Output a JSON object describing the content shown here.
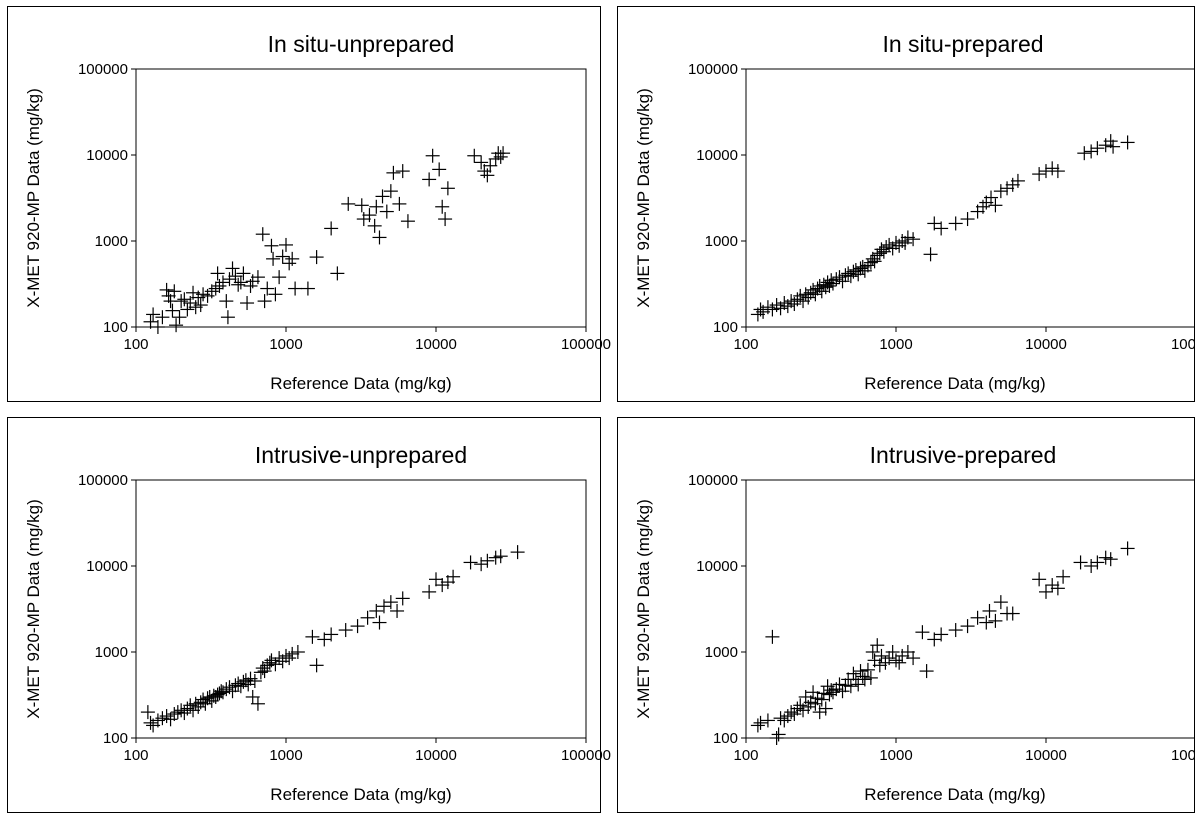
{
  "chart_data": [
    {
      "type": "scatter",
      "title": "In situ-unprepared",
      "xlabel": "Reference Data (mg/kg)",
      "ylabel": "X-MET 920-MP Data (mg/kg)",
      "xscale": "log",
      "yscale": "log",
      "xlim": [
        100,
        100000
      ],
      "ylim": [
        100,
        100000
      ],
      "xticks": [
        "100",
        "1000",
        "10000",
        "100000"
      ],
      "yticks": [
        "100",
        "1000",
        "10000",
        "100000"
      ],
      "grid": false,
      "points": [
        [
          125,
          115
        ],
        [
          130,
          140
        ],
        [
          140,
          100
        ],
        [
          150,
          130
        ],
        [
          160,
          270
        ],
        [
          165,
          230
        ],
        [
          170,
          200
        ],
        [
          175,
          155
        ],
        [
          180,
          260
        ],
        [
          185,
          105
        ],
        [
          195,
          130
        ],
        [
          200,
          200
        ],
        [
          210,
          210
        ],
        [
          220,
          160
        ],
        [
          230,
          190
        ],
        [
          240,
          250
        ],
        [
          250,
          170
        ],
        [
          260,
          220
        ],
        [
          270,
          180
        ],
        [
          280,
          240
        ],
        [
          300,
          230
        ],
        [
          320,
          260
        ],
        [
          340,
          280
        ],
        [
          350,
          420
        ],
        [
          360,
          300
        ],
        [
          380,
          330
        ],
        [
          400,
          200
        ],
        [
          410,
          130
        ],
        [
          420,
          360
        ],
        [
          440,
          480
        ],
        [
          460,
          390
        ],
        [
          480,
          310
        ],
        [
          500,
          330
        ],
        [
          520,
          420
        ],
        [
          550,
          190
        ],
        [
          580,
          300
        ],
        [
          600,
          340
        ],
        [
          650,
          380
        ],
        [
          700,
          1200
        ],
        [
          720,
          200
        ],
        [
          750,
          280
        ],
        [
          800,
          880
        ],
        [
          820,
          620
        ],
        [
          850,
          240
        ],
        [
          900,
          380
        ],
        [
          950,
          660
        ],
        [
          1000,
          900
        ],
        [
          1050,
          550
        ],
        [
          1100,
          620
        ],
        [
          1150,
          280
        ],
        [
          1400,
          280
        ],
        [
          1600,
          650
        ],
        [
          2000,
          1400
        ],
        [
          2200,
          420
        ],
        [
          2600,
          2700
        ],
        [
          3200,
          2600
        ],
        [
          3300,
          1800
        ],
        [
          3600,
          2000
        ],
        [
          3900,
          1500
        ],
        [
          4000,
          2500
        ],
        [
          4200,
          1100
        ],
        [
          4400,
          3300
        ],
        [
          4700,
          2200
        ],
        [
          5000,
          3800
        ],
        [
          5200,
          6200
        ],
        [
          5700,
          2700
        ],
        [
          6000,
          6500
        ],
        [
          6500,
          1700
        ],
        [
          9000,
          5200
        ],
        [
          9500,
          9800
        ],
        [
          10500,
          6800
        ],
        [
          11000,
          2500
        ],
        [
          11500,
          1800
        ],
        [
          12000,
          4100
        ],
        [
          18000,
          9800
        ],
        [
          20000,
          8200
        ],
        [
          21000,
          6500
        ],
        [
          22000,
          5800
        ],
        [
          23000,
          7500
        ],
        [
          25000,
          9000
        ],
        [
          26000,
          10500
        ],
        [
          27000,
          9500
        ],
        [
          28000,
          10500
        ]
      ]
    },
    {
      "type": "scatter",
      "title": "In situ-prepared",
      "xlabel": "Reference Data (mg/kg)",
      "ylabel": "X-MET 920-MP Data (mg/kg)",
      "xscale": "log",
      "yscale": "log",
      "xlim": [
        100,
        100000
      ],
      "ylim": [
        100,
        100000
      ],
      "xticks": [
        "100",
        "1000",
        "10000",
        "100000"
      ],
      "yticks": [
        "100",
        "1000",
        "10000",
        "100000"
      ],
      "grid": false,
      "points": [
        [
          120,
          140
        ],
        [
          125,
          160
        ],
        [
          130,
          150
        ],
        [
          140,
          170
        ],
        [
          150,
          160
        ],
        [
          160,
          180
        ],
        [
          170,
          165
        ],
        [
          180,
          190
        ],
        [
          190,
          175
        ],
        [
          200,
          200
        ],
        [
          210,
          185
        ],
        [
          220,
          210
        ],
        [
          230,
          230
        ],
        [
          240,
          200
        ],
        [
          250,
          240
        ],
        [
          260,
          220
        ],
        [
          270,
          250
        ],
        [
          280,
          270
        ],
        [
          290,
          240
        ],
        [
          300,
          280
        ],
        [
          310,
          300
        ],
        [
          320,
          260
        ],
        [
          330,
          310
        ],
        [
          340,
          290
        ],
        [
          350,
          330
        ],
        [
          360,
          300
        ],
        [
          370,
          350
        ],
        [
          380,
          320
        ],
        [
          400,
          360
        ],
        [
          420,
          380
        ],
        [
          440,
          340
        ],
        [
          460,
          400
        ],
        [
          480,
          420
        ],
        [
          500,
          390
        ],
        [
          520,
          440
        ],
        [
          540,
          460
        ],
        [
          560,
          410
        ],
        [
          580,
          480
        ],
        [
          600,
          500
        ],
        [
          620,
          450
        ],
        [
          650,
          520
        ],
        [
          680,
          560
        ],
        [
          700,
          620
        ],
        [
          720,
          580
        ],
        [
          750,
          680
        ],
        [
          780,
          720
        ],
        [
          800,
          800
        ],
        [
          830,
          750
        ],
        [
          860,
          850
        ],
        [
          900,
          900
        ],
        [
          950,
          820
        ],
        [
          1000,
          950
        ],
        [
          1050,
          880
        ],
        [
          1100,
          1000
        ],
        [
          1150,
          950
        ],
        [
          1200,
          1100
        ],
        [
          1300,
          1050
        ],
        [
          1700,
          700
        ],
        [
          1800,
          1600
        ],
        [
          2000,
          1400
        ],
        [
          2500,
          1600
        ],
        [
          3000,
          1800
        ],
        [
          3500,
          2200
        ],
        [
          3800,
          2500
        ],
        [
          4000,
          2800
        ],
        [
          4300,
          3200
        ],
        [
          4600,
          2600
        ],
        [
          5000,
          3800
        ],
        [
          5500,
          4100
        ],
        [
          6000,
          4500
        ],
        [
          6500,
          5000
        ],
        [
          9000,
          6000
        ],
        [
          10000,
          6500
        ],
        [
          11000,
          7000
        ],
        [
          12000,
          6500
        ],
        [
          18000,
          10500
        ],
        [
          20000,
          11000
        ],
        [
          22000,
          12000
        ],
        [
          25000,
          13000
        ],
        [
          27000,
          14500
        ],
        [
          28000,
          12500
        ],
        [
          35000,
          14000
        ]
      ]
    },
    {
      "type": "scatter",
      "title": "Intrusive-unprepared",
      "xlabel": "Reference Data (mg/kg)",
      "ylabel": "X-MET 920-MP Data (mg/kg)",
      "xscale": "log",
      "yscale": "log",
      "xlim": [
        100,
        100000
      ],
      "ylim": [
        100,
        100000
      ],
      "xticks": [
        "100",
        "1000",
        "10000",
        "100000"
      ],
      "yticks": [
        "100",
        "1000",
        "10000",
        "100000"
      ],
      "grid": false,
      "points": [
        [
          120,
          200
        ],
        [
          125,
          150
        ],
        [
          130,
          140
        ],
        [
          140,
          160
        ],
        [
          150,
          170
        ],
        [
          160,
          180
        ],
        [
          170,
          165
        ],
        [
          180,
          190
        ],
        [
          190,
          200
        ],
        [
          200,
          210
        ],
        [
          210,
          195
        ],
        [
          220,
          220
        ],
        [
          230,
          240
        ],
        [
          240,
          210
        ],
        [
          250,
          250
        ],
        [
          260,
          230
        ],
        [
          270,
          260
        ],
        [
          280,
          280
        ],
        [
          290,
          250
        ],
        [
          300,
          290
        ],
        [
          310,
          300
        ],
        [
          320,
          270
        ],
        [
          330,
          310
        ],
        [
          340,
          300
        ],
        [
          350,
          320
        ],
        [
          360,
          330
        ],
        [
          370,
          350
        ],
        [
          380,
          340
        ],
        [
          400,
          370
        ],
        [
          420,
          390
        ],
        [
          440,
          350
        ],
        [
          460,
          410
        ],
        [
          480,
          430
        ],
        [
          500,
          400
        ],
        [
          520,
          450
        ],
        [
          540,
          470
        ],
        [
          560,
          420
        ],
        [
          580,
          490
        ],
        [
          600,
          300
        ],
        [
          620,
          460
        ],
        [
          650,
          250
        ],
        [
          680,
          580
        ],
        [
          700,
          650
        ],
        [
          720,
          600
        ],
        [
          750,
          700
        ],
        [
          780,
          750
        ],
        [
          800,
          800
        ],
        [
          850,
          720
        ],
        [
          900,
          850
        ],
        [
          950,
          780
        ],
        [
          1000,
          900
        ],
        [
          1050,
          850
        ],
        [
          1100,
          950
        ],
        [
          1200,
          1000
        ],
        [
          1500,
          1500
        ],
        [
          1600,
          700
        ],
        [
          1800,
          1400
        ],
        [
          2000,
          1600
        ],
        [
          2500,
          1800
        ],
        [
          3000,
          2000
        ],
        [
          3500,
          2500
        ],
        [
          4000,
          3000
        ],
        [
          4200,
          2200
        ],
        [
          4500,
          3400
        ],
        [
          5000,
          3800
        ],
        [
          5500,
          3000
        ],
        [
          6000,
          4200
        ],
        [
          9000,
          5000
        ],
        [
          10000,
          7000
        ],
        [
          11000,
          6000
        ],
        [
          12000,
          6500
        ],
        [
          13000,
          7500
        ],
        [
          17000,
          11000
        ],
        [
          20000,
          10500
        ],
        [
          22000,
          11500
        ],
        [
          25000,
          12500
        ],
        [
          27000,
          13000
        ],
        [
          35000,
          14500
        ]
      ]
    },
    {
      "type": "scatter",
      "title": "Intrusive-prepared",
      "xlabel": "Reference Data (mg/kg)",
      "ylabel": "X-MET 920-MP Data (mg/kg)",
      "xscale": "log",
      "yscale": "log",
      "xlim": [
        100,
        100000
      ],
      "ylim": [
        100,
        100000
      ],
      "xticks": [
        "100",
        "1000",
        "10000",
        "100000"
      ],
      "yticks": [
        "100",
        "1000",
        "10000",
        "100000"
      ],
      "grid": false,
      "points": [
        [
          120,
          140
        ],
        [
          125,
          150
        ],
        [
          140,
          160
        ],
        [
          150,
          1500
        ],
        [
          160,
          100
        ],
        [
          165,
          110
        ],
        [
          170,
          170
        ],
        [
          180,
          160
        ],
        [
          190,
          180
        ],
        [
          200,
          200
        ],
        [
          210,
          190
        ],
        [
          220,
          220
        ],
        [
          230,
          240
        ],
        [
          240,
          210
        ],
        [
          250,
          300
        ],
        [
          260,
          230
        ],
        [
          270,
          260
        ],
        [
          280,
          340
        ],
        [
          290,
          250
        ],
        [
          300,
          290
        ],
        [
          310,
          200
        ],
        [
          320,
          280
        ],
        [
          330,
          330
        ],
        [
          340,
          220
        ],
        [
          350,
          400
        ],
        [
          360,
          320
        ],
        [
          370,
          360
        ],
        [
          380,
          340
        ],
        [
          400,
          370
        ],
        [
          420,
          420
        ],
        [
          440,
          350
        ],
        [
          460,
          410
        ],
        [
          480,
          480
        ],
        [
          500,
          400
        ],
        [
          520,
          560
        ],
        [
          540,
          480
        ],
        [
          560,
          420
        ],
        [
          580,
          600
        ],
        [
          600,
          520
        ],
        [
          620,
          480
        ],
        [
          650,
          620
        ],
        [
          680,
          500
        ],
        [
          700,
          1000
        ],
        [
          720,
          800
        ],
        [
          750,
          1200
        ],
        [
          780,
          700
        ],
        [
          800,
          900
        ],
        [
          850,
          750
        ],
        [
          900,
          850
        ],
        [
          950,
          1000
        ],
        [
          1000,
          800
        ],
        [
          1050,
          750
        ],
        [
          1100,
          900
        ],
        [
          1200,
          1000
        ],
        [
          1300,
          850
        ],
        [
          1500,
          1700
        ],
        [
          1600,
          600
        ],
        [
          1800,
          1400
        ],
        [
          2000,
          1600
        ],
        [
          2500,
          1800
        ],
        [
          3000,
          2000
        ],
        [
          3500,
          2500
        ],
        [
          4000,
          2200
        ],
        [
          4200,
          3000
        ],
        [
          4600,
          2300
        ],
        [
          5000,
          3800
        ],
        [
          5500,
          2800
        ],
        [
          6000,
          2800
        ],
        [
          9000,
          7000
        ],
        [
          10000,
          5000
        ],
        [
          11000,
          6000
        ],
        [
          12000,
          5500
        ],
        [
          13000,
          7500
        ],
        [
          17000,
          11000
        ],
        [
          20000,
          10000
        ],
        [
          22000,
          11000
        ],
        [
          25000,
          12500
        ],
        [
          27000,
          12000
        ],
        [
          35000,
          16000
        ]
      ]
    }
  ]
}
